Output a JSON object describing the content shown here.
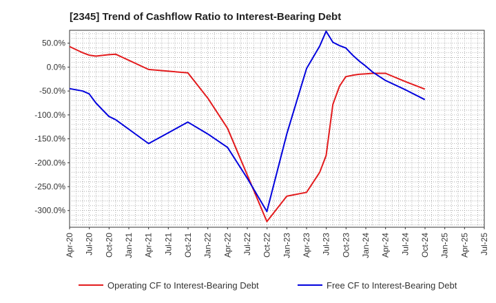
{
  "chart_data": {
    "type": "line",
    "title": "[2345]  Trend of Cashflow Ratio to Interest-Bearing Debt",
    "xlabel": "",
    "ylabel": "",
    "x_ticks": [
      "Apr-20",
      "Jul-20",
      "Oct-20",
      "Jan-21",
      "Apr-21",
      "Jul-21",
      "Oct-21",
      "Jan-22",
      "Apr-22",
      "Jul-22",
      "Oct-22",
      "Jan-23",
      "Apr-23",
      "Jul-23",
      "Oct-23",
      "Jan-24",
      "Apr-24",
      "Jul-24",
      "Oct-24",
      "Jan-25",
      "Apr-25",
      "Jul-25"
    ],
    "y_ticks": [
      "50.0%",
      "0.0%",
      "-50.0%",
      "-100.0%",
      "-150.0%",
      "-200.0%",
      "-250.0%",
      "-300.0%"
    ],
    "ylim": [
      -335,
      77
    ],
    "grid": true,
    "legend_position": "bottom",
    "series": [
      {
        "name": "Operating CF to Interest-Bearing Debt",
        "color": "#e31a1c",
        "x": [
          "2020-03-31",
          "2020-05-31",
          "2020-06-30",
          "2020-07-31",
          "2020-09-30",
          "2020-10-31",
          "2021-03-31",
          "2021-09-30",
          "2021-12-31",
          "2022-03-31",
          "2022-06-30",
          "2022-09-30",
          "2022-12-31",
          "2023-03-31",
          "2023-05-31",
          "2023-06-30",
          "2023-07-31",
          "2023-08-31",
          "2023-09-30",
          "2023-10-31",
          "2023-11-30",
          "2023-12-31",
          "2024-01-31",
          "2024-03-31",
          "2024-06-30",
          "2024-09-30"
        ],
        "values": [
          43,
          30,
          25,
          23,
          26,
          27,
          -5,
          -12,
          -65,
          -128,
          -225,
          -323,
          -270,
          -262,
          -220,
          -185,
          -78,
          -40,
          -20,
          -17,
          -15,
          -14,
          -13,
          -13,
          -30,
          -46
        ]
      },
      {
        "name": "Free CF to Interest-Bearing Debt",
        "color": "#0000dd",
        "x": [
          "2020-03-31",
          "2020-05-31",
          "2020-06-30",
          "2020-07-31",
          "2020-09-30",
          "2020-10-31",
          "2021-03-31",
          "2021-09-30",
          "2021-12-31",
          "2022-03-31",
          "2022-06-30",
          "2022-09-30",
          "2022-12-31",
          "2023-03-31",
          "2023-05-31",
          "2023-06-30",
          "2023-07-31",
          "2023-08-31",
          "2023-09-30",
          "2023-10-31",
          "2023-11-30",
          "2023-12-31",
          "2024-01-31",
          "2024-03-31",
          "2024-06-30",
          "2024-09-30"
        ],
        "values": [
          -45,
          -50,
          -56,
          -75,
          -103,
          -110,
          -160,
          -115,
          -140,
          -168,
          -232,
          -302,
          -140,
          -3,
          44,
          75,
          52,
          45,
          40,
          25,
          13,
          2,
          -10,
          -28,
          -47,
          -68
        ]
      }
    ]
  }
}
